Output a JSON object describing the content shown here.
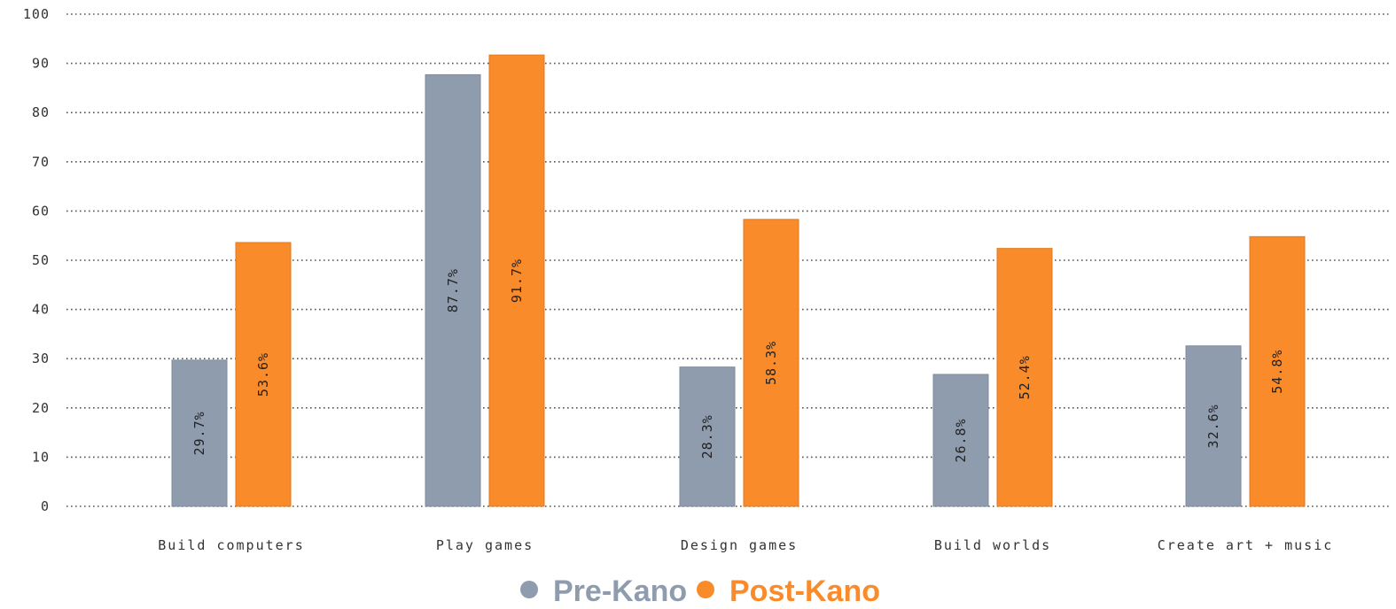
{
  "chart_data": {
    "type": "bar",
    "title": "",
    "xlabel": "",
    "ylabel": "",
    "ylim": [
      0,
      100
    ],
    "y_ticks": [
      0,
      10,
      20,
      30,
      40,
      50,
      60,
      70,
      80,
      90,
      100
    ],
    "grid": "horizontal dotted",
    "legend_position": "bottom-center",
    "categories": [
      "Build computers",
      "Play games",
      "Design games",
      "Build worlds",
      "Create art + music"
    ],
    "series": [
      {
        "name": "Pre-Kano",
        "color": "#8f9cae",
        "values": [
          29.7,
          87.7,
          28.3,
          26.8,
          32.6
        ],
        "labels": [
          "29.7%",
          "87.7%",
          "28.3%",
          "26.8%",
          "32.6%"
        ]
      },
      {
        "name": "Post-Kano",
        "color": "#f98b2b",
        "values": [
          53.6,
          91.7,
          58.3,
          52.4,
          54.8
        ],
        "labels": [
          "53.6%",
          "91.7%",
          "58.3%",
          "52.4%",
          "54.8%"
        ]
      }
    ]
  }
}
